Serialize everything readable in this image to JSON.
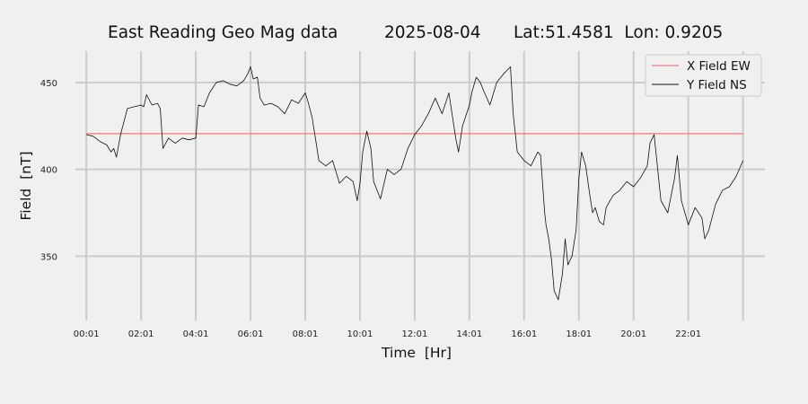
{
  "chart_data": {
    "type": "line",
    "title": {
      "name": "East Reading Geo Mag data",
      "date": "2025-08-04",
      "location": "Lat:51.4581  Lon: 0.9205"
    },
    "xlabel": "Time  [Hr]",
    "ylabel": "Field  [nT]",
    "xlim": [
      -0.4,
      24.8
    ],
    "ylim": [
      313,
      468
    ],
    "x_ticks": [
      0,
      2,
      4,
      6,
      8,
      10,
      12,
      14,
      16,
      18,
      20,
      22,
      24
    ],
    "x_tick_labels": [
      "00:01",
      "02:01",
      "04:01",
      "06:01",
      "08:01",
      "10:01",
      "12:01",
      "14:01",
      "16:01",
      "18:01",
      "20:01",
      "22:01",
      ""
    ],
    "y_ticks": [
      350,
      400,
      450
    ],
    "y_tick_labels": [
      "350",
      "400",
      "450"
    ],
    "grid": true,
    "legend_position": "top-right",
    "series": [
      {
        "name": "X Field EW",
        "color": "#e06060",
        "x": [
          0,
          24
        ],
        "y": [
          420.5,
          420.5
        ]
      },
      {
        "name": "Y Field NS",
        "color": "#111111",
        "x": [
          0,
          0.25,
          0.5,
          0.75,
          0.9,
          1.0,
          1.1,
          1.25,
          1.5,
          1.75,
          2.0,
          2.1,
          2.2,
          2.4,
          2.6,
          2.7,
          2.8,
          3.0,
          3.25,
          3.5,
          3.75,
          4.0,
          4.1,
          4.3,
          4.5,
          4.75,
          5.0,
          5.25,
          5.5,
          5.75,
          5.9,
          6.0,
          6.1,
          6.25,
          6.35,
          6.5,
          6.75,
          7.0,
          7.25,
          7.5,
          7.75,
          8.0,
          8.1,
          8.25,
          8.4,
          8.5,
          8.75,
          9.0,
          9.25,
          9.5,
          9.75,
          9.9,
          10.0,
          10.1,
          10.25,
          10.4,
          10.5,
          10.75,
          11.0,
          11.25,
          11.5,
          11.75,
          12.0,
          12.25,
          12.5,
          12.75,
          13.0,
          13.25,
          13.5,
          13.6,
          13.75,
          14.0,
          14.1,
          14.25,
          14.4,
          14.5,
          14.75,
          15.0,
          15.25,
          15.5,
          15.6,
          15.75,
          16.0,
          16.25,
          16.5,
          16.6,
          16.75,
          16.8,
          16.9,
          17.0,
          17.1,
          17.25,
          17.4,
          17.5,
          17.6,
          17.75,
          17.9,
          18.0,
          18.1,
          18.25,
          18.4,
          18.5,
          18.6,
          18.75,
          18.9,
          19.0,
          19.25,
          19.5,
          19.75,
          20.0,
          20.25,
          20.5,
          20.6,
          20.75,
          21.0,
          21.25,
          21.5,
          21.6,
          21.75,
          22.0,
          22.1,
          22.25,
          22.5,
          22.6,
          22.75,
          23.0,
          23.25,
          23.5,
          23.75,
          24.0
        ],
        "y": [
          420,
          419,
          416,
          414,
          410,
          412,
          407,
          420,
          435,
          436,
          437,
          436,
          443,
          437,
          438,
          435,
          412,
          418,
          415,
          418,
          417,
          418,
          437,
          436,
          444,
          450,
          451,
          449,
          448,
          451,
          455,
          459,
          452,
          453,
          441,
          437,
          438,
          436,
          432,
          440,
          438,
          444,
          439,
          430,
          415,
          405,
          402,
          405,
          392,
          396,
          393,
          382,
          392,
          410,
          422,
          412,
          393,
          383,
          400,
          397,
          400,
          412,
          420,
          425,
          432,
          441,
          432,
          444,
          418,
          410,
          425,
          437,
          445,
          453,
          450,
          446,
          437,
          450,
          455,
          459,
          432,
          410,
          405,
          402,
          410,
          408,
          375,
          368,
          360,
          348,
          330,
          325,
          340,
          360,
          345,
          350,
          365,
          395,
          410,
          402,
          385,
          375,
          378,
          370,
          368,
          378,
          385,
          388,
          393,
          390,
          395,
          402,
          415,
          420,
          382,
          375,
          395,
          408,
          382,
          368,
          372,
          378,
          372,
          360,
          365,
          380,
          388,
          390,
          396,
          405
        ]
      }
    ]
  }
}
